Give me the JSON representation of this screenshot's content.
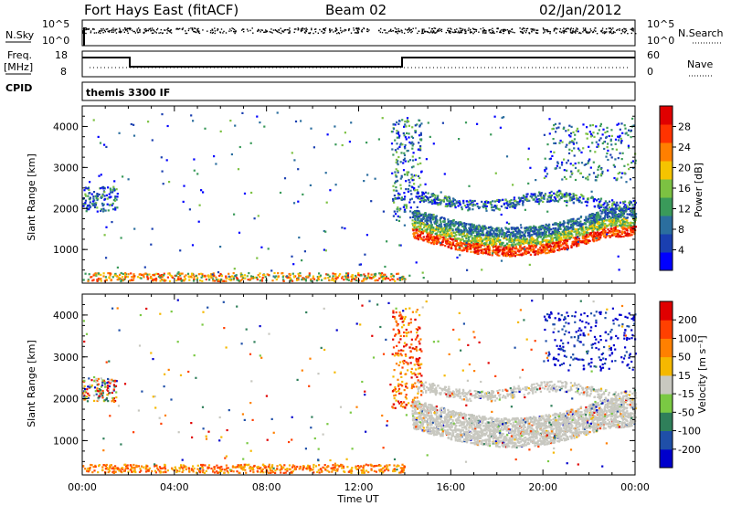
{
  "header": {
    "station": "Fort Hays East (fitACF)",
    "beam": "Beam 02",
    "date": "02/Jan/2012"
  },
  "status_panels": {
    "left_labels": {
      "nsky": "N.Sky",
      "freq_top": "Freq.",
      "freq_unit": "[MHz]",
      "cpid": "CPID"
    },
    "right_labels": {
      "nsearch": "N.Search",
      "nave": "Nave"
    },
    "nsky_ticks": [
      "10^5",
      "10^0"
    ],
    "nsearch_ticks": [
      "10^5",
      "10^0"
    ],
    "freq_ticks": [
      "18",
      "8"
    ],
    "nave_ticks": [
      "60",
      "0"
    ],
    "cpid_text": "themis 3300 IF"
  },
  "chart_data": [
    {
      "type": "heatmap",
      "name": "power",
      "ylabel": "Slant Range [km]",
      "xlabel": "",
      "colorbar_label": "Power [dB]",
      "colorbar_ticks": [
        "28",
        "24",
        "20",
        "16",
        "12",
        "8",
        "4"
      ],
      "colorbar_colors": [
        "#0000ff",
        "#1a3fb0",
        "#2b6e9e",
        "#3a9a5a",
        "#7cc142",
        "#f5c400",
        "#ff7f00",
        "#ff3300",
        "#e00000"
      ],
      "yticks": [
        "4000",
        "3000",
        "2000",
        "1000"
      ],
      "ylim": [
        180,
        4500
      ],
      "xlim": [
        0,
        24
      ]
    },
    {
      "type": "heatmap",
      "name": "velocity",
      "ylabel": "Slant Range [km]",
      "xlabel": "Time UT",
      "colorbar_label": "Velocity [m s⁻¹]",
      "colorbar_ticks": [
        "200",
        "100",
        "50",
        "15",
        "-15",
        "-50",
        "-100",
        "-200"
      ],
      "colorbar_colors": [
        "#0000cc",
        "#1f4fa8",
        "#2f7f5a",
        "#7ac943",
        "#c8c8c0",
        "#f5b800",
        "#ff8000",
        "#ff4000",
        "#e00000"
      ],
      "yticks": [
        "4000",
        "3000",
        "2000",
        "1000"
      ],
      "xticks": [
        "00:00",
        "04:00",
        "08:00",
        "12:00",
        "16:00",
        "20:00",
        "00:00"
      ],
      "ylim": [
        180,
        4500
      ],
      "xlim": [
        0,
        24
      ]
    }
  ]
}
